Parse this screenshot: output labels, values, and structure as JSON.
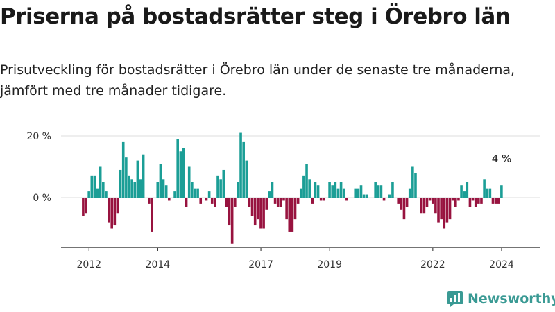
{
  "header": {
    "title": "Priserna på bostadsrätter steg i Örebro län",
    "subtitle": "Prisutveckling för bostadsrätter i Örebro län under de senaste tre månaderna, jämfört med tre månader tidigare."
  },
  "brand": {
    "name": "Newsworthy",
    "icon": "newsworthy-logo-icon",
    "color": "#3a9a94"
  },
  "chart_data": {
    "type": "bar",
    "x_start": "2011-11",
    "x_step": "1 month",
    "values": [
      -6,
      -5,
      2,
      7,
      7,
      3,
      10,
      5,
      2,
      -8,
      -10,
      -9,
      -5,
      9,
      18,
      13,
      7,
      6,
      5,
      12,
      6,
      14,
      0,
      -2,
      -11,
      0,
      5,
      11,
      6,
      4,
      -1,
      0,
      2,
      19,
      15,
      16,
      -3,
      10,
      5,
      3,
      3,
      -2,
      0,
      -1,
      2,
      -2,
      -3,
      7,
      6,
      9,
      -3,
      -9,
      -15,
      -3,
      5,
      21,
      18,
      12,
      -3,
      -6,
      -9,
      -7,
      -10,
      -10,
      -4,
      2,
      5,
      -2,
      -3,
      -3,
      -1,
      -7,
      -11,
      -11,
      -7,
      -2,
      3,
      7,
      11,
      6,
      -2,
      5,
      4,
      -1,
      -1,
      0,
      5,
      4,
      5,
      3,
      5,
      3,
      -1,
      0,
      0,
      3,
      3,
      4,
      1,
      1,
      0,
      0,
      5,
      4,
      4,
      -1,
      0,
      1,
      5,
      0,
      -2,
      -4,
      -7,
      -3,
      3,
      10,
      8,
      0,
      -5,
      -5,
      -3,
      -1,
      -2,
      -5,
      -8,
      -7,
      -10,
      -8,
      -7,
      -1,
      -3,
      -1,
      4,
      2,
      5,
      -3,
      -1,
      -3,
      -2,
      -2,
      6,
      3,
      3,
      -2,
      -2,
      -2,
      4
    ],
    "ylim": [
      -16,
      21
    ],
    "yticks": [
      0,
      20
    ],
    "ytick_labels": [
      "0 %",
      "20 %"
    ],
    "xticks": [
      "2012",
      "2014",
      "2017",
      "2019",
      "2022",
      "2024"
    ],
    "annotation": {
      "text": "4 %",
      "target": "last"
    },
    "colors": {
      "positive": "#1b9e96",
      "negative": "#98133f",
      "grid": "#dcdcdc",
      "axis": "#222222"
    },
    "grid": true
  }
}
